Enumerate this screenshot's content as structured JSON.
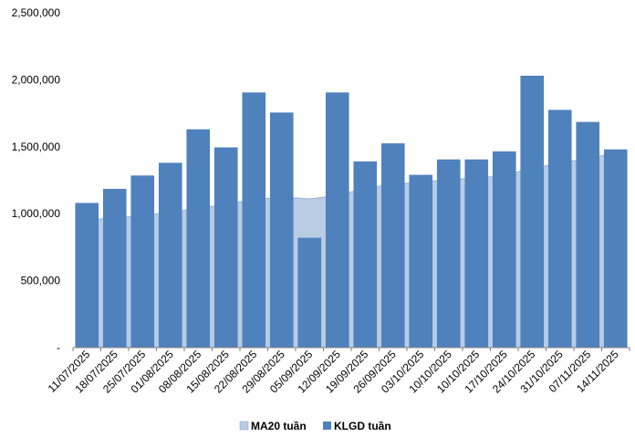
{
  "chart_data": {
    "type": "bar",
    "categories": [
      "11/07/2025",
      "18/07/2025",
      "25/07/2025",
      "01/08/2025",
      "08/08/2025",
      "15/08/2025",
      "22/08/2025",
      "29/08/2025",
      "05/09/2025",
      "12/09/2025",
      "19/09/2025",
      "26/09/2025",
      "03/10/2025",
      "10/10/2025",
      "10/10/2025",
      "17/10/2025",
      "24/10/2025",
      "31/10/2025",
      "07/11/2025",
      "14/11/2025"
    ],
    "series": [
      {
        "name": "MA20 tuần",
        "type": "area",
        "color": "#b8cce4",
        "values": [
          950000,
          970000,
          985000,
          1010000,
          1040000,
          1070000,
          1105000,
          1125000,
          1110000,
          1135000,
          1190000,
          1220000,
          1235000,
          1255000,
          1265000,
          1285000,
          1340000,
          1375000,
          1415000,
          1450000
        ]
      },
      {
        "name": "KLGD tuần",
        "type": "bar",
        "color": "#4f81bd",
        "values": [
          1080000,
          1185000,
          1285000,
          1380000,
          1630000,
          1495000,
          1905000,
          1755000,
          820000,
          1905000,
          1390000,
          1525000,
          1290000,
          1405000,
          1405000,
          1465000,
          2030000,
          1775000,
          1685000,
          1480000
        ]
      }
    ],
    "ylim": [
      0,
      2500000
    ],
    "yticks": [
      "-",
      "500,000",
      "1,000,000",
      "1,500,000",
      "2,000,000",
      "2,500,000"
    ],
    "legend_position": "bottom",
    "grid": false
  }
}
